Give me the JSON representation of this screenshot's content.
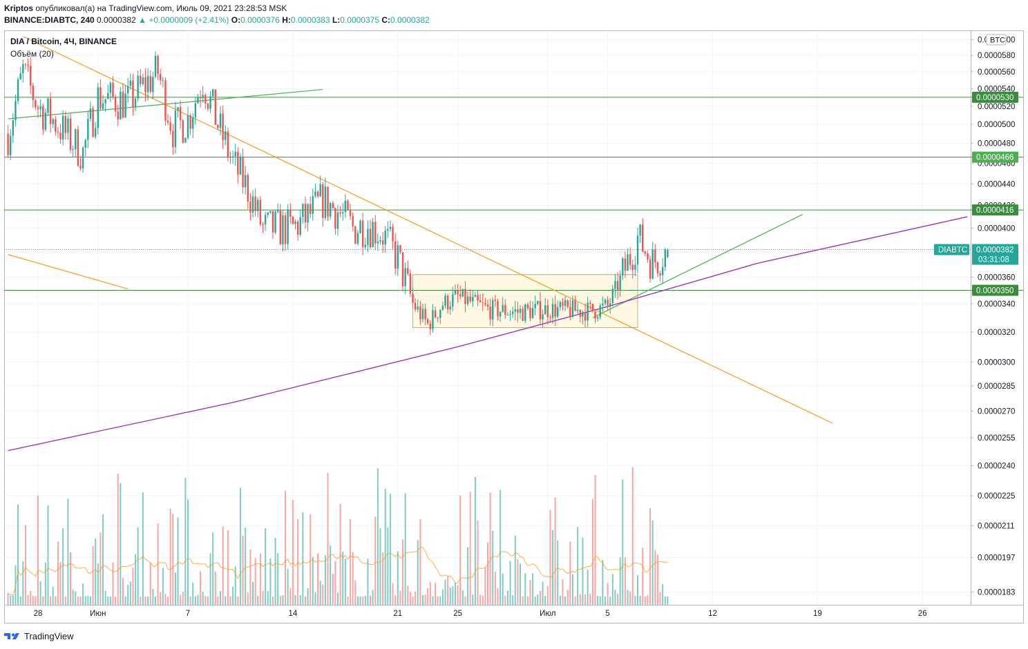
{
  "header": {
    "author": "Kriptos",
    "published": "опубликовал(а) на TradingView.com, Июль 09, 2021 23:28:53 MSK",
    "symbol_full": "BINANCE:DIABTC, 240",
    "last": "0.0000382",
    "change": "▲ +0.0000009 (+2.41%)",
    "o_label": "O:",
    "o": "0.0000376",
    "h_label": "H:",
    "h": "0.0000383",
    "l_label": "L:",
    "l": "0.0000375",
    "c_label": "C:",
    "c": "0.0000382"
  },
  "legend": {
    "title": "DIA / Bitcoin, 4Ч, BINANCE",
    "volume": "Объём (20)"
  },
  "footer": {
    "brand": "TradingView"
  },
  "colors": {
    "up": "#26a69a",
    "down": "#ef5350",
    "vol_up": "#80cbc4",
    "vol_down": "#f7a6a4",
    "level": "#388e3c",
    "trend": "#f59b1b",
    "green_trend": "#4caf50",
    "purple": "#9c27b0",
    "vol_ma": "#f59b1b",
    "badge_green": "#388e3c",
    "badge_light": "#4caf50",
    "badge_teal": "#26a69a"
  },
  "chart_data": {
    "type": "candlestick",
    "symbol": "DIABTC",
    "interval": "4Ч",
    "exchange": "BINANCE",
    "currency": "BTC",
    "y_scale": "log",
    "ylim": [
      1.78e-05,
      6.12e-05
    ],
    "x_ticks": [
      {
        "label": "28",
        "date": "2021-05-28"
      },
      {
        "label": "Июн",
        "date": "2021-06-01"
      },
      {
        "label": "7",
        "date": "2021-06-07"
      },
      {
        "label": "14",
        "date": "2021-06-14"
      },
      {
        "label": "21",
        "date": "2021-06-21"
      },
      {
        "label": "25",
        "date": "2021-06-25"
      },
      {
        "label": "Июл",
        "date": "2021-07-01"
      },
      {
        "label": "5",
        "date": "2021-07-05"
      },
      {
        "label": "12",
        "date": "2021-07-12"
      },
      {
        "label": "19",
        "date": "2021-07-19"
      },
      {
        "label": "26",
        "date": "2021-07-26"
      }
    ],
    "y_ticks": [
      "0.0000600",
      "0.0000580",
      "0.0000560",
      "0.0000540",
      "0.0000520",
      "0.0000500",
      "0.0000480",
      "0.0000460",
      "0.0000440",
      "0.0000420",
      "0.0000400",
      "0.0000360",
      "0.0000340",
      "0.0000320",
      "0.0000300",
      "0.0000285",
      "0.0000270",
      "0.0000255",
      "0.0000240",
      "0.0000225",
      "0.0000211",
      "0.0000197",
      "0.0000183"
    ],
    "price_path": [
      {
        "date": "2021-05-26",
        "close": 4.9e-05
      },
      {
        "date": "2021-05-27",
        "close": 5.6e-05
      },
      {
        "date": "2021-05-28",
        "close": 5.2e-05
      },
      {
        "date": "2021-05-29",
        "close": 5.05e-05
      },
      {
        "date": "2021-05-31",
        "close": 4.7e-05
      },
      {
        "date": "2021-06-01",
        "close": 5.3e-05
      },
      {
        "date": "2021-06-03",
        "close": 5.25e-05
      },
      {
        "date": "2021-06-05",
        "close": 5.6e-05
      },
      {
        "date": "2021-06-06",
        "close": 4.95e-05
      },
      {
        "date": "2021-06-07",
        "close": 5.05e-05
      },
      {
        "date": "2021-06-08",
        "close": 5.5e-05
      },
      {
        "date": "2021-06-09",
        "close": 5e-05
      },
      {
        "date": "2021-06-10",
        "close": 4.6e-05
      },
      {
        "date": "2021-06-11",
        "close": 4.35e-05
      },
      {
        "date": "2021-06-12",
        "close": 4e-05
      },
      {
        "date": "2021-06-14",
        "close": 4e-05
      },
      {
        "date": "2021-06-15",
        "close": 4.1e-05
      },
      {
        "date": "2021-06-16",
        "close": 4.25e-05
      },
      {
        "date": "2021-06-17",
        "close": 4.15e-05
      },
      {
        "date": "2021-06-18",
        "close": 4e-05
      },
      {
        "date": "2021-06-19",
        "close": 4.03e-05
      },
      {
        "date": "2021-06-20",
        "close": 3.95e-05
      },
      {
        "date": "2021-06-21",
        "close": 3.75e-05
      },
      {
        "date": "2021-06-22",
        "close": 3.4e-05
      },
      {
        "date": "2021-06-23",
        "close": 3.25e-05
      },
      {
        "date": "2021-06-24",
        "close": 3.4e-05
      },
      {
        "date": "2021-06-25",
        "close": 3.45e-05
      },
      {
        "date": "2021-06-27",
        "close": 3.36e-05
      },
      {
        "date": "2021-06-29",
        "close": 3.34e-05
      },
      {
        "date": "2021-07-01",
        "close": 3.36e-05
      },
      {
        "date": "2021-07-03",
        "close": 3.35e-05
      },
      {
        "date": "2021-07-04",
        "close": 3.35e-05
      },
      {
        "date": "2021-07-05",
        "close": 3.38e-05
      },
      {
        "date": "2021-07-06",
        "close": 3.62e-05
      },
      {
        "date": "2021-07-07",
        "close": 3.92e-05
      },
      {
        "date": "2021-07-08",
        "close": 3.72e-05
      },
      {
        "date": "2021-07-09",
        "close": 3.82e-05
      }
    ],
    "horizontal_levels": [
      {
        "label": "0.0000530",
        "value": 5.3e-05
      },
      {
        "label": "0.0000466",
        "value": 4.66e-05
      },
      {
        "label": "0.0000416",
        "value": 4.16e-05
      },
      {
        "label": "0.0000350",
        "value": 3.5e-05
      }
    ],
    "last_price": {
      "symbol": "DIABTC",
      "value": "0.0000382",
      "countdown": "03:31:08"
    },
    "range_box": {
      "from": "2021-06-22",
      "to": "2021-07-07",
      "high": 3.62e-05,
      "low": 3.23e-05
    },
    "trendlines": [
      {
        "kind": "orange_down",
        "from": [
          "2021-05-27",
          6.04e-05
        ],
        "to": [
          "2021-07-20",
          2.63e-05
        ]
      },
      {
        "kind": "orange_short",
        "from": [
          "2021-05-26",
          3.78e-05
        ],
        "to": [
          "2021-06-03",
          3.51e-05
        ]
      },
      {
        "kind": "green_up_top",
        "from": [
          "2021-05-26",
          5.06e-05
        ],
        "to": [
          "2021-06-16",
          5.39e-05
        ]
      },
      {
        "kind": "green_up_bottom",
        "from": [
          "2021-07-04",
          3.3e-05
        ],
        "to": [
          "2021-07-18",
          4.12e-05
        ]
      },
      {
        "kind": "purple_curve",
        "points": [
          [
            "2021-05-26",
            2.48e-05
          ],
          [
            "2021-06-10",
            2.75e-05
          ],
          [
            "2021-06-25",
            3.1e-05
          ],
          [
            "2021-07-05",
            3.38e-05
          ],
          [
            "2021-07-15",
            3.71e-05
          ],
          [
            "2021-07-29",
            4.1e-05
          ]
        ]
      }
    ],
    "volume": {
      "ma_period": 20
    }
  }
}
